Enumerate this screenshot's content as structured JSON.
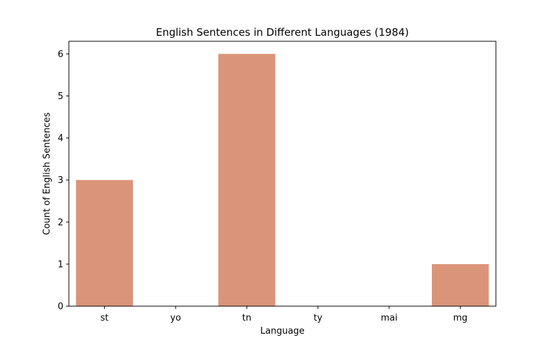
{
  "chart_data": {
    "type": "bar",
    "title": "English Sentences in Different Languages (1984)",
    "xlabel": "Language",
    "ylabel": "Count of English Sentences",
    "categories": [
      "st",
      "yo",
      "tn",
      "ty",
      "mai",
      "mg"
    ],
    "values": [
      3,
      0,
      6,
      0,
      0,
      1
    ],
    "ylim": [
      0,
      6.3
    ],
    "yticks": [
      0,
      1,
      2,
      3,
      4,
      5,
      6
    ],
    "bar_color": "#da9479",
    "grid": false,
    "legend": "none"
  }
}
